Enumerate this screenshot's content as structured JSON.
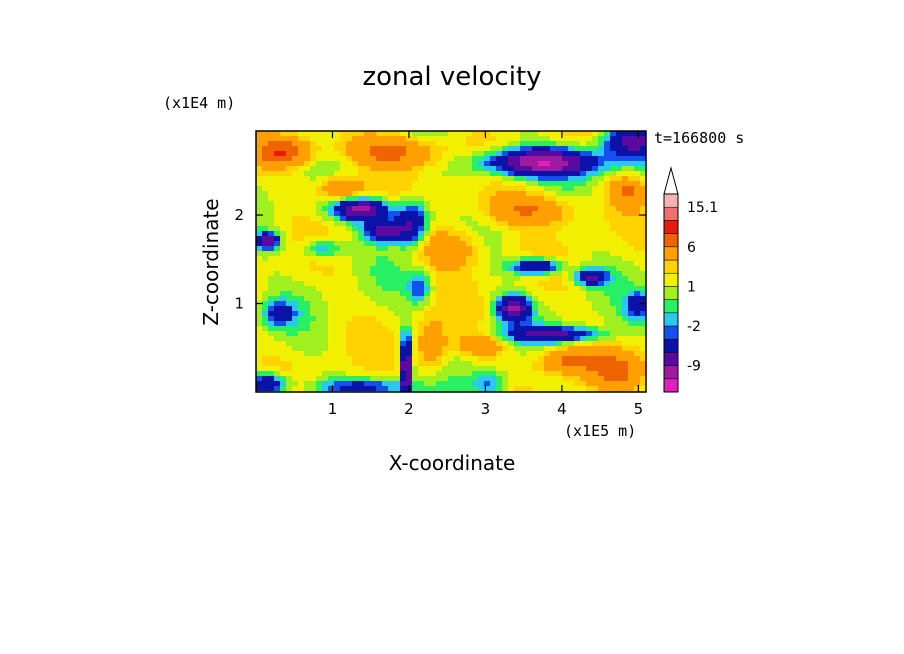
{
  "chart_data": {
    "type": "heatmap",
    "title": "zonal velocity",
    "xlabel": "X-coordinate",
    "ylabel": "Z-coordinate",
    "x_multiplier": "(x1E5 m)",
    "y_multiplier": "(x1E4 m)",
    "time_label": "t=166800 s",
    "xlim": [
      0,
      5.1
    ],
    "ylim": [
      0,
      2.95
    ],
    "x_ticks": [
      1,
      2,
      3,
      4,
      5
    ],
    "y_ticks": [
      1,
      2
    ],
    "colorbar": {
      "levels": [
        -15,
        -12,
        -9,
        -6,
        -3,
        -2,
        -1,
        0,
        1,
        2,
        3,
        6,
        9,
        12,
        15.1
      ],
      "labels": [
        "15.1",
        "6",
        "1",
        "-2",
        "-9"
      ],
      "colors": [
        "#e020c0",
        "#a01aa0",
        "#5a0aa0",
        "#0a12a8",
        "#1450f0",
        "#28c8f0",
        "#28f064",
        "#a0f020",
        "#f0f000",
        "#ffd200",
        "#ffa000",
        "#f06400",
        "#e81a10",
        "#f07070",
        "#f5b4b4"
      ],
      "overflow_color": "#ffffff"
    },
    "grid": false
  }
}
